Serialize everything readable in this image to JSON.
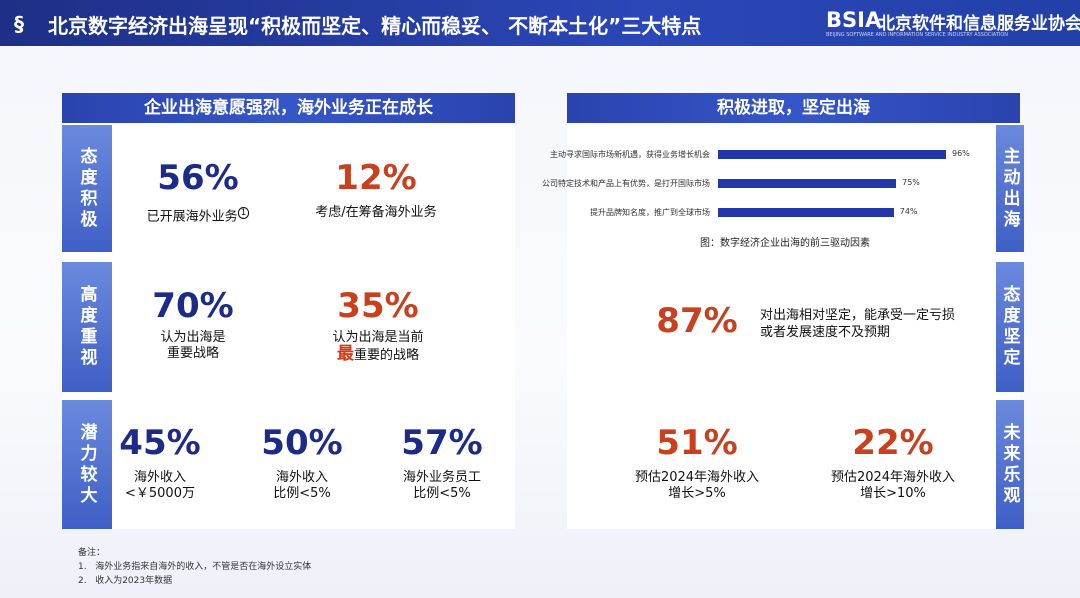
{
  "header": {
    "title": "北京数字经济出海呈现“积极而坚定、精心而稳妥、 不断本土化”三大特点",
    "logo": "BSIA",
    "org": "北京软件和信息服务业协会",
    "org_en": "BEIJING SOFTWARE AND INFORMATION SERVICE INDUSTRY ASSOCIATION"
  },
  "left": {
    "title": "企业出海意愿强烈，海外业务正在成长",
    "rows": [
      {
        "label": "态度积极",
        "stats": [
          {
            "value": "56%",
            "lines": [
              "已开展海外业务"
            ],
            "note": "1"
          },
          {
            "value": "12%",
            "lines": [
              "考虑/在筹备海外业务"
            ]
          }
        ]
      },
      {
        "label": "高度重视",
        "stats": [
          {
            "value": "70%",
            "lines": [
              "认为出海是",
              "重要战略"
            ]
          },
          {
            "value": "35%",
            "lines": [
              "认为出海是当前"
            ],
            "emphasis": "最",
            "emphasis_rest": "重要的战略"
          }
        ]
      },
      {
        "label": "潜力较大",
        "stats": [
          {
            "value": "45%",
            "lines": [
              "海外收入",
              "<￥5000万"
            ]
          },
          {
            "value": "50%",
            "lines": [
              "海外收入",
              "比例<5%"
            ]
          },
          {
            "value": "57%",
            "lines": [
              "海外业务员工",
              "比例<5%"
            ]
          }
        ]
      }
    ]
  },
  "right": {
    "title": "积极进取，坚定出海",
    "rows": [
      {
        "label": "主动出海"
      },
      {
        "label": "态度坚定"
      },
      {
        "label": "未来乐观"
      }
    ],
    "chart_data": {
      "type": "bar",
      "categories": [
        "主动寻求国际市场新机遇，获得业务增长机会",
        "公司特定技术和产品上有优势，是打开国际市场",
        "提升品牌知名度，推广到全球市场"
      ],
      "values": [
        96,
        75,
        74
      ],
      "value_labels": [
        "96%",
        "75%",
        "74%"
      ],
      "color": "#2337a8",
      "caption": "图：数字经济企业出海的前三驱动因素"
    },
    "firm": {
      "value": "87%",
      "lines": [
        "对出海相对坚定，能承受一定亏损",
        "或者发展速度不及预期"
      ]
    },
    "outlook": [
      {
        "value": "51%",
        "lines": [
          "预估2024年海外收入",
          "增长>5%"
        ]
      },
      {
        "value": "22%",
        "lines": [
          "预估2024年海外收入",
          "增长>10%"
        ]
      }
    ]
  },
  "notes": {
    "title": "备注：",
    "items": [
      {
        "num": "1.",
        "text": "海外业务指来自海外的收入，不管是否在海外设立实体"
      },
      {
        "num": "2.",
        "text": "收入为2023年数据"
      }
    ]
  }
}
